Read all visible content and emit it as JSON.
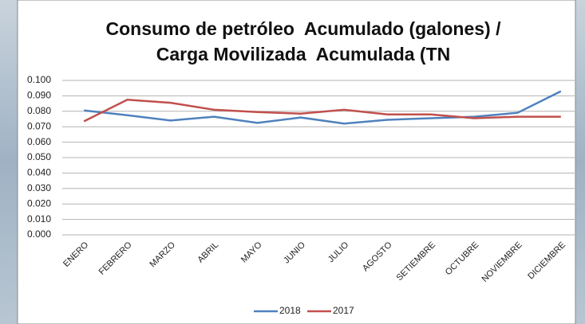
{
  "chart_data": {
    "type": "line",
    "title": [
      "Consumo de petróleo  Acumulado (galones) /",
      "Carga Movilizada  Acumulada (TN"
    ],
    "categories": [
      "ENERO",
      "FEBRERO",
      "MARZO",
      "ABRIL",
      "MAYO",
      "JUNIO",
      "JULIO",
      "AGOSTO",
      "SETIEMBRE",
      "OCTUBRE",
      "NOVIEMBRE",
      "DICIEMBRE"
    ],
    "series": [
      {
        "name": "2018",
        "color": "#4f81bd",
        "values": [
          0.0805,
          0.0775,
          0.074,
          0.0765,
          0.0725,
          0.076,
          0.072,
          0.0745,
          0.0755,
          0.0765,
          0.079,
          0.093
        ]
      },
      {
        "name": "2017",
        "color": "#c0504d",
        "values": [
          0.0735,
          0.0875,
          0.0855,
          0.081,
          0.0795,
          0.0785,
          0.081,
          0.078,
          0.078,
          0.0755,
          0.0765,
          0.0765
        ]
      }
    ],
    "ylim": [
      0,
      0.1
    ],
    "yticks": [
      {
        "value": 0,
        "label": "0.000"
      },
      {
        "value": 0.01,
        "label": "0.010"
      },
      {
        "value": 0.02,
        "label": "0.020"
      },
      {
        "value": 0.03,
        "label": "0.030"
      },
      {
        "value": 0.04,
        "label": "0.040"
      },
      {
        "value": 0.05,
        "label": "0.050"
      },
      {
        "value": 0.06,
        "label": "0.060"
      },
      {
        "value": 0.07,
        "label": "0.070"
      },
      {
        "value": 0.08,
        "label": "0.080"
      },
      {
        "value": 0.09,
        "label": "0.090"
      },
      {
        "value": 0.1,
        "label": "0.100"
      }
    ],
    "grid": true,
    "legend": "bottom"
  }
}
